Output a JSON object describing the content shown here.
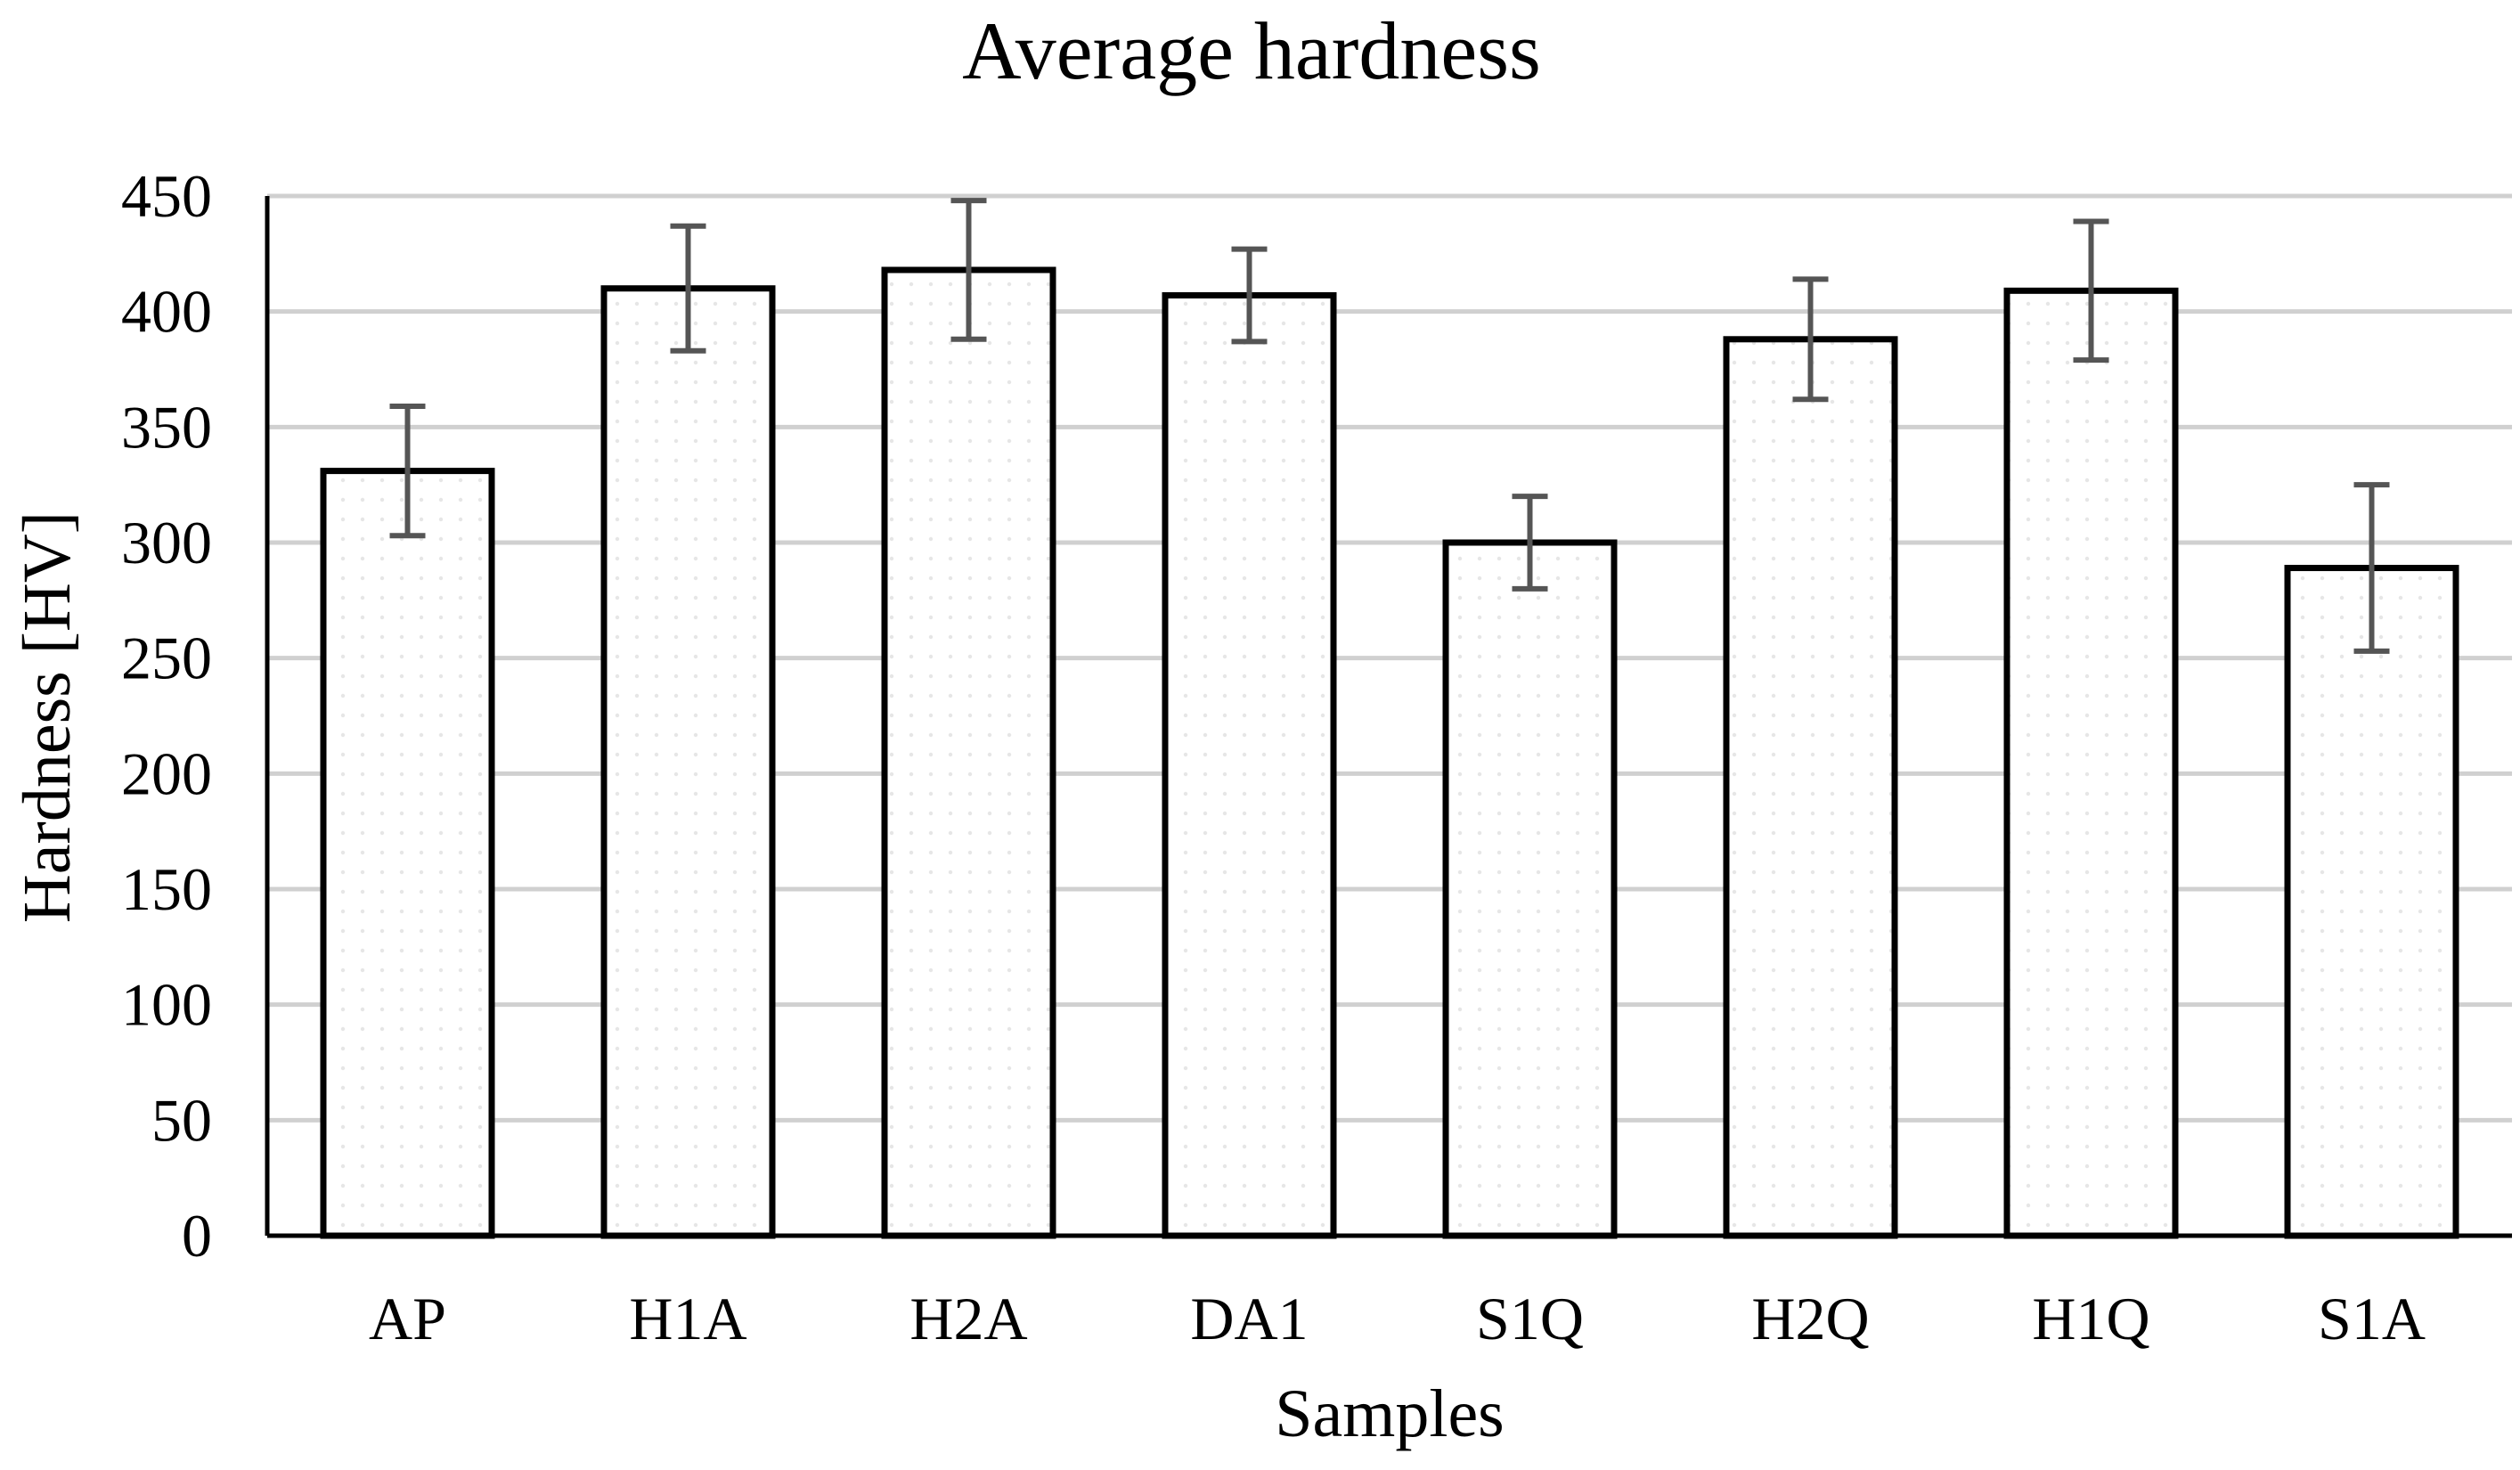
{
  "chart_data": {
    "type": "bar",
    "title": "Average hardness",
    "xlabel": "Samples",
    "ylabel": "Hardness [HV]",
    "categories": [
      "AP",
      "H1A",
      "H2A",
      "DA1",
      "S1Q",
      "H2Q",
      "H1Q",
      "S1A"
    ],
    "values": [
      331,
      410,
      418,
      407,
      300,
      388,
      409,
      289
    ],
    "error": [
      28,
      27,
      30,
      20,
      20,
      26,
      30,
      36
    ],
    "ylim": [
      0,
      450
    ],
    "yticks": [
      0,
      50,
      100,
      150,
      200,
      250,
      300,
      350,
      400,
      450
    ],
    "grid": true,
    "legend": "none",
    "colors": {
      "bar_fill": "#ffffff",
      "bar_stroke": "#000000",
      "dot_pattern": "#e6e6e6",
      "gridline": "#d0d0d0",
      "error_bar": "#555555"
    }
  }
}
